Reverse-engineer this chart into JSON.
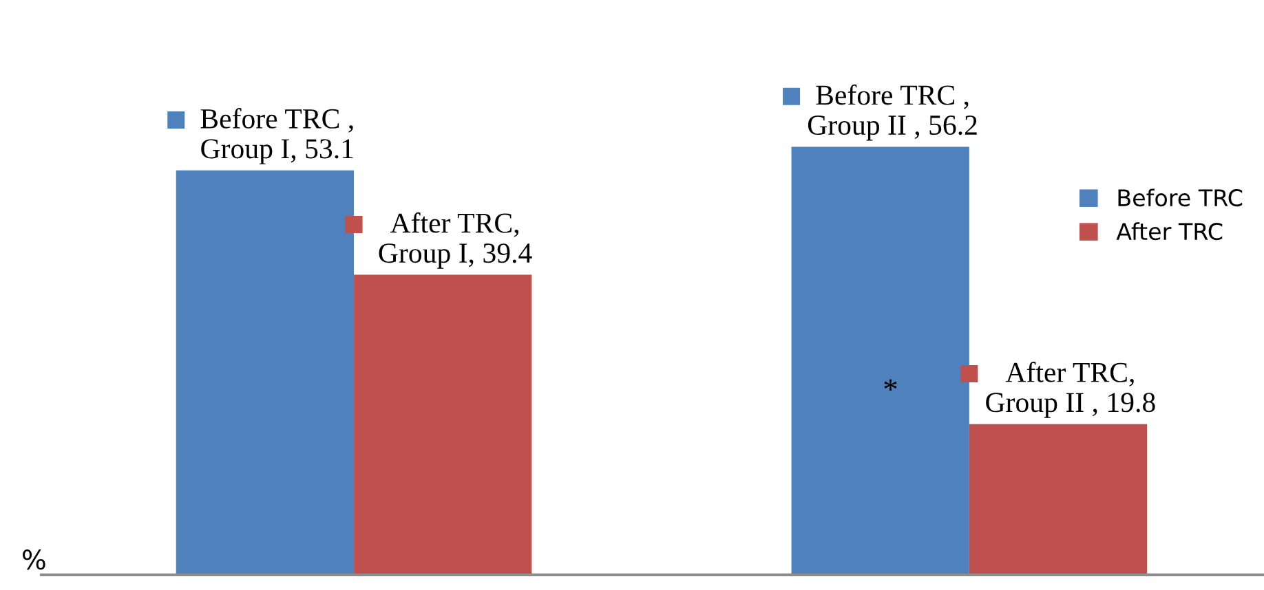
{
  "chart_data": {
    "type": "bar",
    "ylabel": "%",
    "categories": [
      null,
      null
    ],
    "series": [
      {
        "name": "Before TRC",
        "color": "#4f81bd",
        "values": [
          53.1,
          56.2
        ],
        "value_labels": [
          "Before TRC ,\nGroup I, 53.1",
          "Before TRC ,\nGroup II , 56.2"
        ]
      },
      {
        "name": "After TRC",
        "color": "#c0504d",
        "values": [
          39.4,
          19.8
        ],
        "value_labels": [
          "After TRC,\nGroup I, 39.4",
          "After TRC,\nGroup II , 19.8"
        ]
      }
    ],
    "tick_labels": false,
    "grid": false,
    "legend": "right",
    "annotations": [
      "*"
    ]
  }
}
